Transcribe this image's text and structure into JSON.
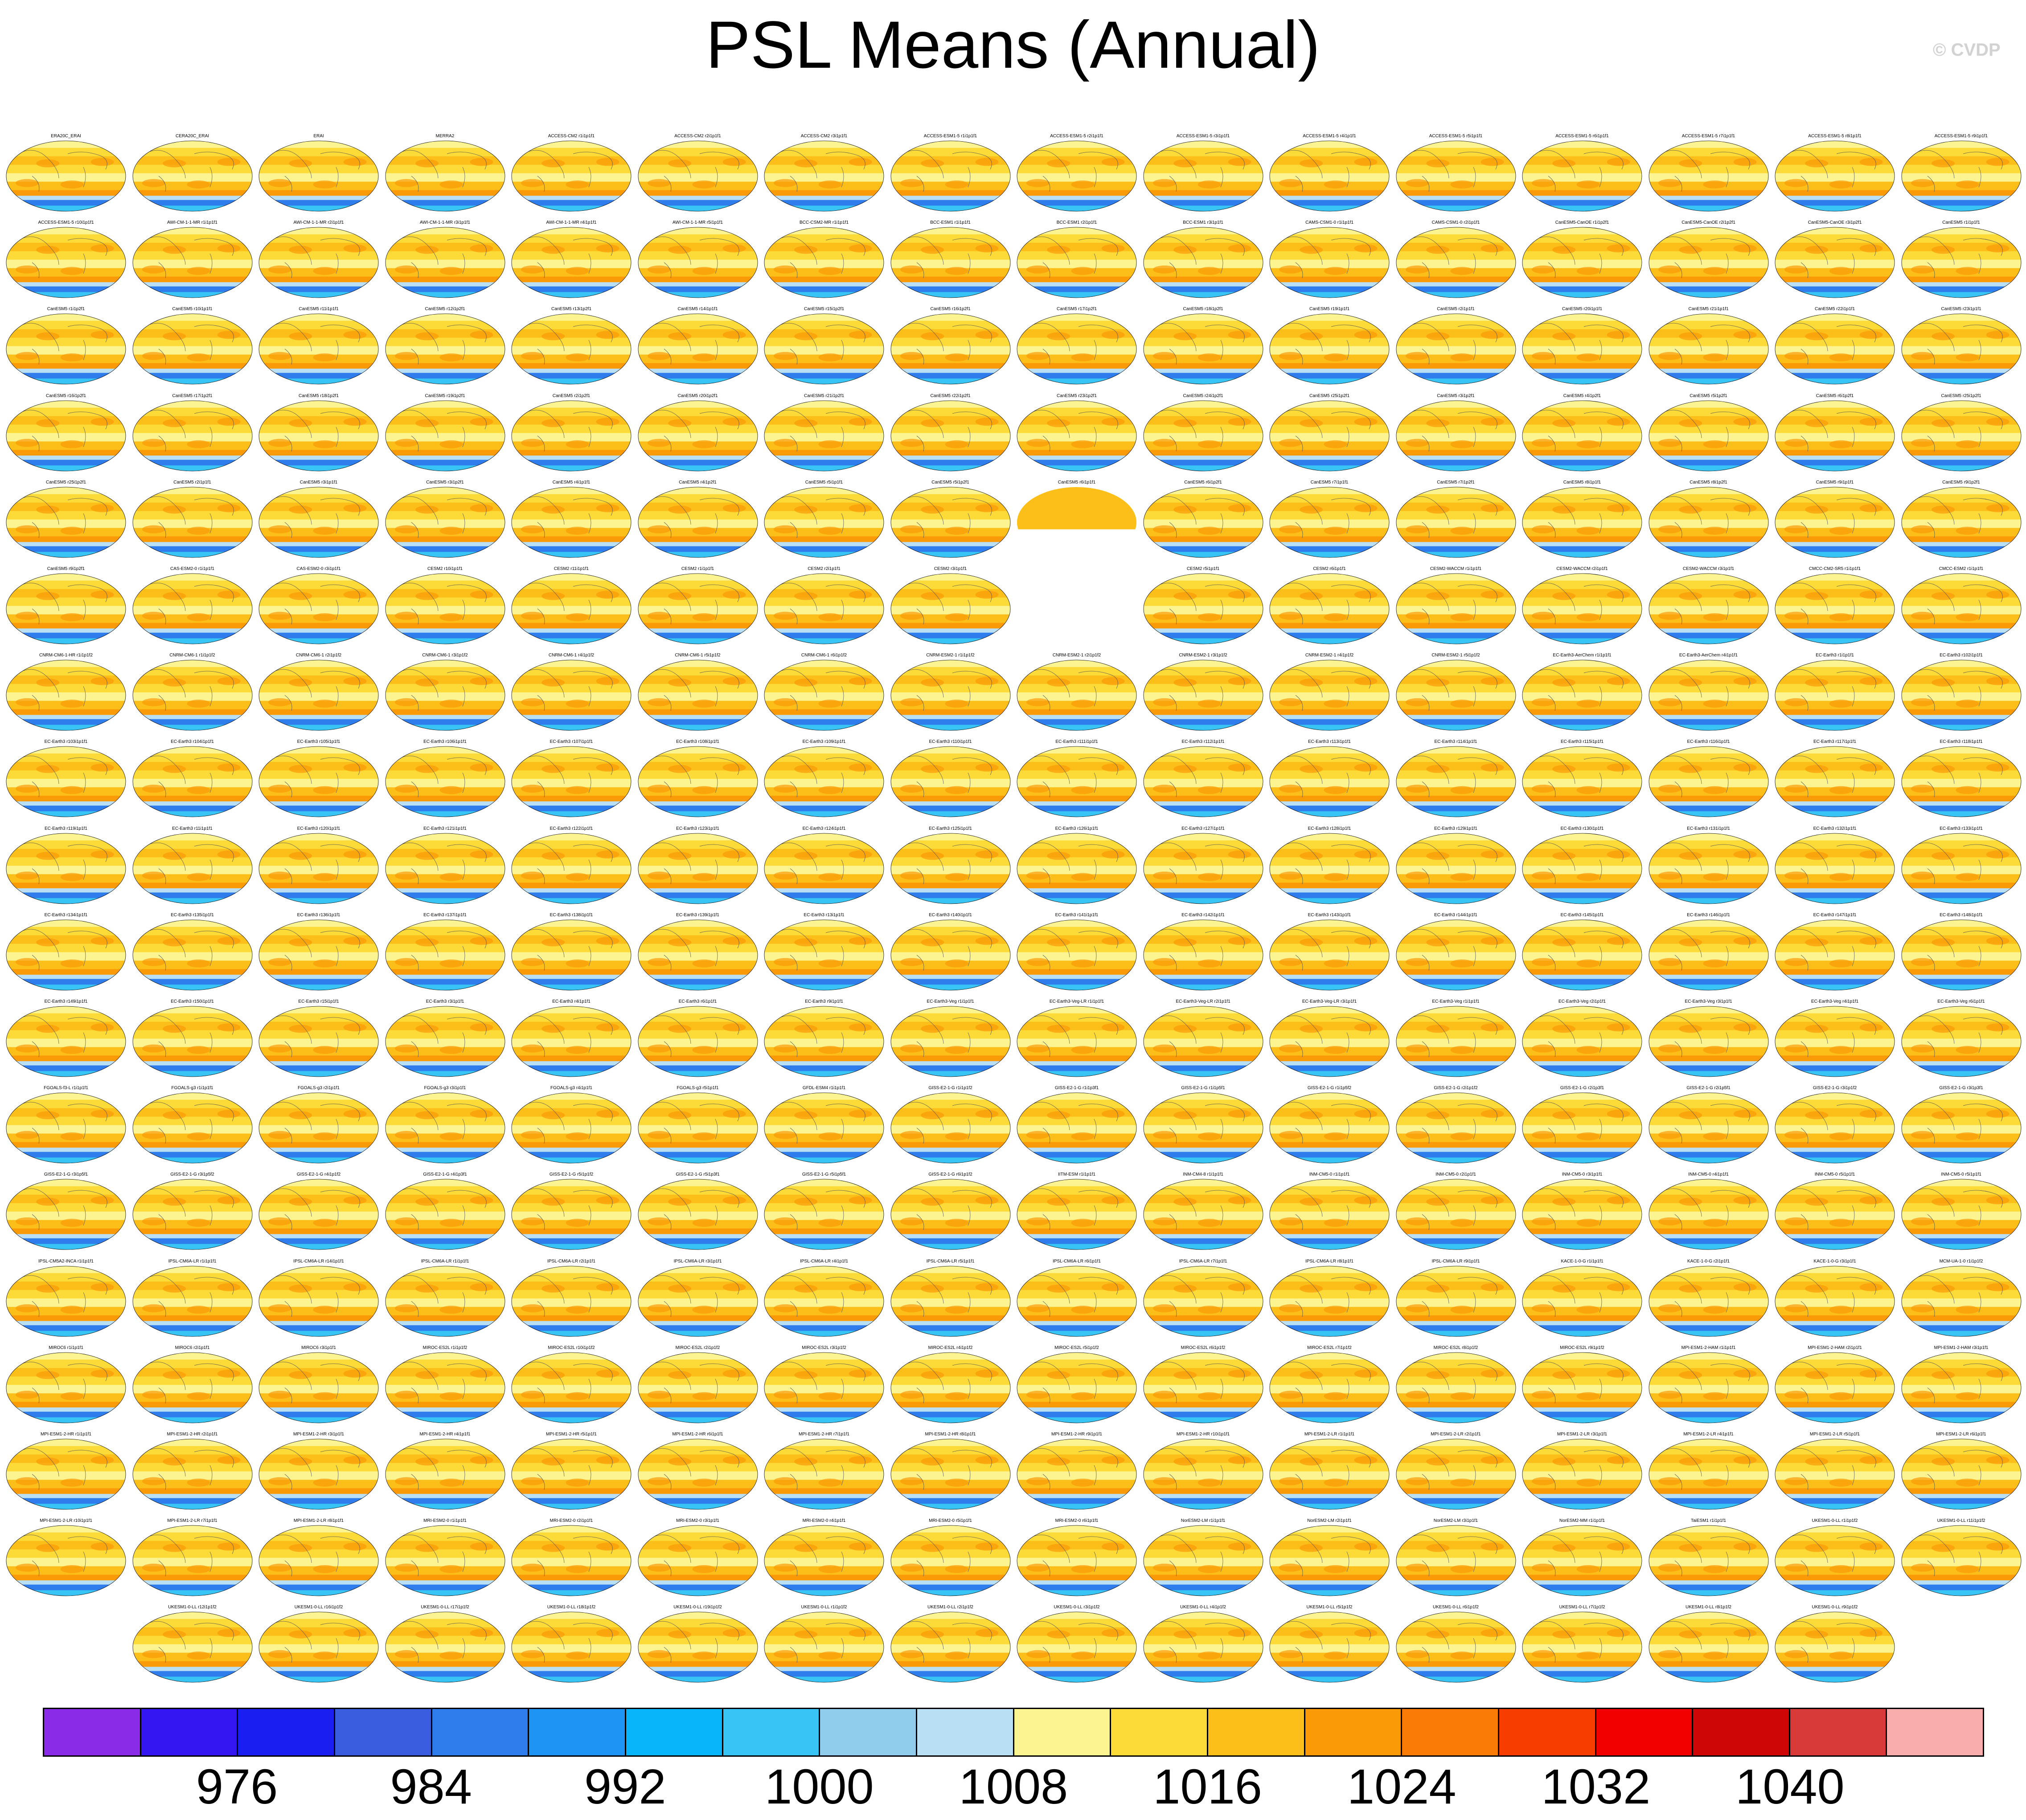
{
  "title": "PSL Means (Annual)",
  "watermark": "© CVDP",
  "chart_data": {
    "type": "heatmap",
    "title": "PSL Means (Annual)",
    "variable": "PSL",
    "units": "hPa",
    "season": "Annual",
    "layout": "small-multiples global map panels",
    "colorbar": {
      "levels": [
        972,
        976,
        980,
        984,
        988,
        992,
        996,
        1000,
        1004,
        1008,
        1012,
        1016,
        1020,
        1024,
        1028,
        1032,
        1036,
        1040,
        1044
      ],
      "tick_labels": [
        "976",
        "984",
        "992",
        "1000",
        "1008",
        "1016",
        "1024",
        "1032",
        "1040"
      ],
      "colors": [
        "#8a2be8",
        "#3316f2",
        "#1a1ef0",
        "#3a5ddf",
        "#2f7ded",
        "#1e95f5",
        "#08b5fb",
        "#38c4f4",
        "#90ccec",
        "#b9dff4",
        "#fcf490",
        "#fcda38",
        "#fcbf1a",
        "#fb9a07",
        "#fa7b05",
        "#f73d00",
        "#f20000",
        "#ce0606",
        "#d83a3a",
        "#f9adad"
      ]
    },
    "panel_rows": [
      [
        "ERA20C_ERAI",
        "CERA20C_ERAI",
        "ERAI",
        "MERRA2",
        "ACCESS-CM2 r1i1p1f1",
        "ACCESS-CM2 r2i1p1f1",
        "ACCESS-CM2 r3i1p1f1",
        "ACCESS-ESM1-5 r1i1p1f1",
        "ACCESS-ESM1-5 r2i1p1f1",
        "ACCESS-ESM1-5 r3i1p1f1",
        "ACCESS-ESM1-5 r4i1p1f1",
        "ACCESS-ESM1-5 r5i1p1f1",
        "ACCESS-ESM1-5 r6i1p1f1",
        "ACCESS-ESM1-5 r7i1p1f1",
        "ACCESS-ESM1-5 r8i1p1f1",
        "ACCESS-ESM1-5 r9i1p1f1"
      ],
      [
        "ACCESS-ESM1-5 r10i1p1f1",
        "AWI-CM-1-1-MR r1i1p1f1",
        "AWI-CM-1-1-MR r2i1p1f1",
        "AWI-CM-1-1-MR r3i1p1f1",
        "AWI-CM-1-1-MR r4i1p1f1",
        "AWI-CM-1-1-MR r5i1p1f1",
        "BCC-CSM2-MR r1i1p1f1",
        "BCC-ESM1 r1i1p1f1",
        "BCC-ESM1 r2i1p1f1",
        "BCC-ESM1 r3i1p1f1",
        "CAMS-CSM1-0 r1i1p1f1",
        "CAMS-CSM1-0 r2i1p1f1",
        "CanESM5-CanOE r1i1p2f1",
        "CanESM5-CanOE r2i1p2f1",
        "CanESM5-CanOE r3i1p2f1",
        "CanESM5 r1i1p1f1"
      ],
      [
        "CanESM5 r1i1p2f1",
        "CanESM5 r10i1p1f1",
        "CanESM5 r11i1p1f1",
        "CanESM5 r12i1p2f1",
        "CanESM5 r13i1p2f1",
        "CanESM5 r14i1p1f1",
        "CanESM5 r15i1p2f1",
        "CanESM5 r16i1p2f1",
        "CanESM5 r17i1p2f1",
        "CanESM5 r18i1p2f1",
        "CanESM5 r19i1p1f1",
        "CanESM5 r2i1p1f1",
        "CanESM5 r20i1p1f1",
        "CanESM5 r21i1p1f1",
        "CanESM5 r22i1p1f1",
        "CanESM5 r23i1p1f1"
      ],
      [
        "CanESM5 r16i1p2f1",
        "CanESM5 r17i1p2f1",
        "CanESM5 r18i1p2f1",
        "CanESM5 r19i1p2f1",
        "CanESM5 r2i1p2f1",
        "CanESM5 r20i1p2f1",
        "CanESM5 r21i1p2f1",
        "CanESM5 r22i1p2f1",
        "CanESM5 r23i1p2f1",
        "CanESM5 r24i1p2f1",
        "CanESM5 r25i1p2f1",
        "CanESM5 r3i1p2f1",
        "CanESM5 r4i1p2f1",
        "CanESM5 r5i1p2f1",
        "CanESM5 r6i1p2f1",
        "CanESM5 r25i1p2f1"
      ],
      [
        "CanESM5 r25i1p2f1",
        "CanESM5 r2i1p1f1",
        "CanESM5 r3i1p1f1",
        "CanESM5 r3i1p2f1",
        "CanESM5 r4i1p1f1",
        "CanESM5 r4i1p2f1",
        "CanESM5 r5i1p1f1",
        "CanESM5 r5i1p2f1",
        "CanESM5 r6i1p1f1",
        "CanESM5 r6i1p2f1",
        "CanESM5 r7i1p1f1",
        "CanESM5 r7i1p2f1",
        "CanESM5 r8i1p1f1",
        "CanESM5 r8i1p2f1",
        "CanESM5 r9i1p1f1",
        "CanESM5 r9i1p2f1"
      ],
      [
        "CanESM5 r9i1p2f1",
        "CAS-ESM2-0 r1i1p1f1",
        "CAS-ESM2-0 r3i1p1f1",
        "CESM2 r10i1p1f1",
        "CESM2 r11i1p1f1",
        "CESM2 r1i1p1f1",
        "CESM2 r2i1p1f1",
        "CESM2 r3i1p1f1",
        "",
        "CESM2 r5i1p1f1",
        "CESM2 r6i1p1f1",
        "CESM2-WACCM r1i1p1f1",
        "CESM2-WACCM r2i1p1f1",
        "CESM2-WACCM r3i1p1f1",
        "CMCC-CM2-SR5 r1i1p1f1",
        "CMCC-ESM2 r1i1p1f1"
      ],
      [
        "CNRM-CM6-1-HR r1i1p1f2",
        "CNRM-CM6-1 r1i1p1f2",
        "CNRM-CM6-1 r2i1p1f2",
        "CNRM-CM6-1 r3i1p1f2",
        "CNRM-CM6-1 r4i1p1f2",
        "CNRM-CM6-1 r5i1p1f2",
        "CNRM-CM6-1 r6i1p1f2",
        "CNRM-ESM2-1 r1i1p1f2",
        "CNRM-ESM2-1 r2i1p1f2",
        "CNRM-ESM2-1 r3i1p1f2",
        "CNRM-ESM2-1 r4i1p1f2",
        "CNRM-ESM2-1 r5i1p1f2",
        "EC-Earth3-AerChem r1i1p1f1",
        "EC-Earth3-AerChem r4i1p1f1",
        "EC-Earth3 r1i1p1f1",
        "EC-Earth3 r102i1p1f1"
      ],
      [
        "EC-Earth3 r103i1p1f1",
        "EC-Earth3 r104i1p1f1",
        "EC-Earth3 r105i1p1f1",
        "EC-Earth3 r106i1p1f1",
        "EC-Earth3 r107i1p1f1",
        "EC-Earth3 r108i1p1f1",
        "EC-Earth3 r109i1p1f1",
        "EC-Earth3 r110i1p1f1",
        "EC-Earth3 r111i1p1f1",
        "EC-Earth3 r112i1p1f1",
        "EC-Earth3 r113i1p1f1",
        "EC-Earth3 r114i1p1f1",
        "EC-Earth3 r115i1p1f1",
        "EC-Earth3 r116i1p1f1",
        "EC-Earth3 r117i1p1f1",
        "EC-Earth3 r118i1p1f1"
      ],
      [
        "EC-Earth3 r119i1p1f1",
        "EC-Earth3 r11i1p1f1",
        "EC-Earth3 r120i1p1f1",
        "EC-Earth3 r121i1p1f1",
        "EC-Earth3 r122i1p1f1",
        "EC-Earth3 r123i1p1f1",
        "EC-Earth3 r124i1p1f1",
        "EC-Earth3 r125i1p1f1",
        "EC-Earth3 r126i1p1f1",
        "EC-Earth3 r127i1p1f1",
        "EC-Earth3 r128i1p1f1",
        "EC-Earth3 r129i1p1f1",
        "EC-Earth3 r130i1p1f1",
        "EC-Earth3 r131i1p1f1",
        "EC-Earth3 r132i1p1f1",
        "EC-Earth3 r133i1p1f1"
      ],
      [
        "EC-Earth3 r134i1p1f1",
        "EC-Earth3 r135i1p1f1",
        "EC-Earth3 r136i1p1f1",
        "EC-Earth3 r137i1p1f1",
        "EC-Earth3 r138i1p1f1",
        "EC-Earth3 r139i1p1f1",
        "EC-Earth3 r13i1p1f1",
        "EC-Earth3 r140i1p1f1",
        "EC-Earth3 r141i1p1f1",
        "EC-Earth3 r142i1p1f1",
        "EC-Earth3 r143i1p1f1",
        "EC-Earth3 r144i1p1f1",
        "EC-Earth3 r145i1p1f1",
        "EC-Earth3 r146i1p1f1",
        "EC-Earth3 r147i1p1f1",
        "EC-Earth3 r148i1p1f1"
      ],
      [
        "EC-Earth3 r149i1p1f1",
        "EC-Earth3 r150i1p1f1",
        "EC-Earth3 r15i1p1f1",
        "EC-Earth3 r3i1p1f1",
        "EC-Earth3 r4i1p1f1",
        "EC-Earth3 r6i1p1f1",
        "EC-Earth3 r9i1p1f1",
        "EC-Earth3-Veg r1i1p1f1",
        "EC-Earth3-Veg-LR r1i1p1f1",
        "EC-Earth3-Veg-LR r2i1p1f1",
        "EC-Earth3-Veg-LR r3i1p1f1",
        "EC-Earth3-Veg r1i1p1f1",
        "EC-Earth3-Veg r2i1p1f1",
        "EC-Earth3-Veg r3i1p1f1",
        "EC-Earth3-Veg r4i1p1f1",
        "EC-Earth3-Veg r6i1p1f1"
      ],
      [
        "FGOALS-f3-L r1i1p1f1",
        "FGOALS-g3 r1i1p1f1",
        "FGOALS-g3 r2i1p1f1",
        "FGOALS-g3 r3i1p1f1",
        "FGOALS-g3 r4i1p1f1",
        "FGOALS-g3 r5i1p1f1",
        "GFDL-ESM4 r1i1p1f1",
        "GISS-E2-1-G r1i1p1f2",
        "GISS-E2-1-G r1i1p3f1",
        "GISS-E2-1-G r1i1p5f1",
        "GISS-E2-1-G r1i1p5f2",
        "GISS-E2-1-G r2i1p1f2",
        "GISS-E2-1-G r2i1p3f1",
        "GISS-E2-1-G r2i1p5f1",
        "GISS-E2-1-G r3i1p1f2",
        "GISS-E2-1-G r3i1p3f1"
      ],
      [
        "GISS-E2-1-G r3i1p5f1",
        "GISS-E2-1-G r3i1p5f2",
        "GISS-E2-1-G r4i1p1f2",
        "GISS-E2-1-G r4i1p3f1",
        "GISS-E2-1-G r5i1p1f2",
        "GISS-E2-1-G r5i1p3f1",
        "GISS-E2-1-G r5i1p5f1",
        "GISS-E2-1-G r6i1p1f2",
        "IITM-ESM r1i1p1f1",
        "INM-CM4-8 r1i1p1f1",
        "INM-CM5-0 r1i1p1f1",
        "INM-CM5-0 r2i1p1f1",
        "INM-CM5-0 r3i1p1f1",
        "INM-CM5-0 r4i1p1f1",
        "INM-CM5-0 r5i1p1f1",
        "INM-CM5-0 r5i1p1f1"
      ],
      [
        "IPSL-CM5A2-INCA r1i1p1f1",
        "IPSL-CM6A-LR r1i1p1f1",
        "IPSL-CM6A-LR r14i1p1f1",
        "IPSL-CM6A-LR r1i1p1f1",
        "IPSL-CM6A-LR r2i1p1f1",
        "IPSL-CM6A-LR r3i1p1f1",
        "IPSL-CM6A-LR r4i1p1f1",
        "IPSL-CM6A-LR r5i1p1f1",
        "IPSL-CM6A-LR r6i1p1f1",
        "IPSL-CM6A-LR r7i1p1f1",
        "IPSL-CM6A-LR r8i1p1f1",
        "IPSL-CM6A-LR r9i1p1f1",
        "KACE-1-0-G r1i1p1f1",
        "KACE-1-0-G r2i1p1f1",
        "KACE-1-0-G r3i1p1f1",
        "MCM-UA-1-0 r1i1p1f2"
      ],
      [
        "MIROC6 r1i1p1f1",
        "MIROC6 r2i1p1f1",
        "MIROC6 r3i1p1f1",
        "MIROC-ES2L r1i1p1f2",
        "MIROC-ES2L r10i1p1f2",
        "MIROC-ES2L r2i1p1f2",
        "MIROC-ES2L r3i1p1f2",
        "MIROC-ES2L r4i1p1f2",
        "MIROC-ES2L r5i1p1f2",
        "MIROC-ES2L r6i1p1f2",
        "MIROC-ES2L r7i1p1f2",
        "MIROC-ES2L r8i1p1f2",
        "MIROC-ES2L r9i1p1f2",
        "MPI-ESM1-2-HAM r1i1p1f1",
        "MPI-ESM1-2-HAM r2i1p1f1",
        "MPI-ESM1-2-HAM r3i1p1f1"
      ],
      [
        "MPI-ESM1-2-HR r1i1p1f1",
        "MPI-ESM1-2-HR r2i1p1f1",
        "MPI-ESM1-2-HR r3i1p1f1",
        "MPI-ESM1-2-HR r4i1p1f1",
        "MPI-ESM1-2-HR r5i1p1f1",
        "MPI-ESM1-2-HR r6i1p1f1",
        "MPI-ESM1-2-HR r7i1p1f1",
        "MPI-ESM1-2-HR r8i1p1f1",
        "MPI-ESM1-2-HR r9i1p1f1",
        "MPI-ESM1-2-HR r10i1p1f1",
        "MPI-ESM1-2-LR r1i1p1f1",
        "MPI-ESM1-2-LR r2i1p1f1",
        "MPI-ESM1-2-LR r3i1p1f1",
        "MPI-ESM1-2-LR r4i1p1f1",
        "MPI-ESM1-2-LR r5i1p1f1",
        "MPI-ESM1-2-LR r6i1p1f1"
      ],
      [
        "MPI-ESM1-2-LR r10i1p1f1",
        "MPI-ESM1-2-LR r7i1p1f1",
        "MPI-ESM1-2-LR r8i1p1f1",
        "MRI-ESM2-0 r1i1p1f1",
        "MRI-ESM2-0 r2i1p1f1",
        "MRI-ESM2-0 r3i1p1f1",
        "MRI-ESM2-0 r4i1p1f1",
        "MRI-ESM2-0 r5i1p1f1",
        "MRI-ESM2-0 r6i1p1f1",
        "NorESM2-LM r1i1p1f1",
        "NorESM2-LM r2i1p1f1",
        "NorESM2-LM r3i1p1f1",
        "NorESM2-MM r1i1p1f1",
        "TaiESM1 r1i1p1f1",
        "UKESM1-0-LL r1i1p1f2",
        "UKESM1-0-LL r11i1p1f2"
      ],
      [
        "",
        "UKESM1-0-LL r12i1p1f2",
        "UKESM1-0-LL r16i1p1f2",
        "UKESM1-0-LL r17i1p1f2",
        "UKESM1-0-LL r18i1p1f2",
        "UKESM1-0-LL r19i1p1f2",
        "UKESM1-0-LL r1i1p1f2",
        "UKESM1-0-LL r2i1p1f2",
        "UKESM1-0-LL r3i1p1f2",
        "UKESM1-0-LL r4i1p1f2",
        "UKESM1-0-LL r5i1p1f2",
        "UKESM1-0-LL r6i1p1f2",
        "UKESM1-0-LL r7i1p1f2",
        "UKESM1-0-LL r8i1p1f2",
        "UKESM1-0-LL r9i1p1f2",
        ""
      ]
    ],
    "cut_panels": [
      [
        4,
        8
      ]
    ]
  }
}
